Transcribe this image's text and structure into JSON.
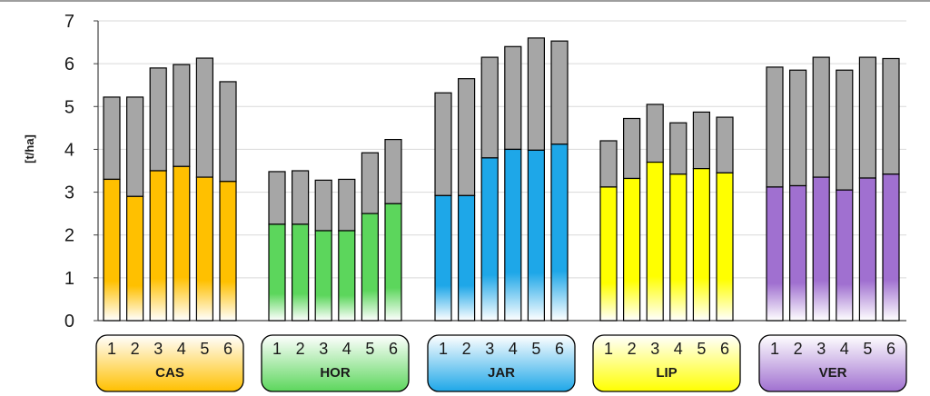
{
  "chart_data": {
    "type": "bar",
    "stacked": true,
    "title": "",
    "xlabel": "",
    "ylabel": "[t/ha]",
    "ylim": [
      0,
      7
    ],
    "yticks": [
      0,
      1,
      2,
      3,
      4,
      5,
      6,
      7
    ],
    "grid": true,
    "legend": "none",
    "categories": [
      "1",
      "2",
      "3",
      "4",
      "5",
      "6"
    ],
    "groups": [
      {
        "name": "CAS",
        "color": "#FFC000",
        "lower": [
          3.3,
          2.9,
          3.5,
          3.6,
          3.35,
          3.25
        ],
        "total": [
          5.22,
          5.22,
          5.9,
          5.98,
          6.13,
          5.58
        ]
      },
      {
        "name": "HOR",
        "color": "#5CD65C",
        "lower": [
          2.25,
          2.25,
          2.1,
          2.1,
          2.5,
          2.73
        ],
        "total": [
          3.48,
          3.5,
          3.28,
          3.3,
          3.92,
          4.23
        ]
      },
      {
        "name": "JAR",
        "color": "#1EA7E8",
        "lower": [
          2.92,
          2.92,
          3.8,
          4.0,
          3.98,
          4.12
        ],
        "total": [
          5.32,
          5.65,
          6.15,
          6.4,
          6.6,
          6.53
        ]
      },
      {
        "name": "LIP",
        "color": "#FFFF00",
        "lower": [
          3.12,
          3.32,
          3.7,
          3.42,
          3.55,
          3.45
        ],
        "total": [
          4.2,
          4.72,
          5.05,
          4.62,
          4.87,
          4.75
        ]
      },
      {
        "name": "VER",
        "color": "#A070D0",
        "lower": [
          3.12,
          3.15,
          3.35,
          3.05,
          3.33,
          3.42
        ],
        "total": [
          5.92,
          5.85,
          6.15,
          5.85,
          6.15,
          6.12
        ]
      }
    ],
    "upper_color": "#A6A6A6"
  }
}
